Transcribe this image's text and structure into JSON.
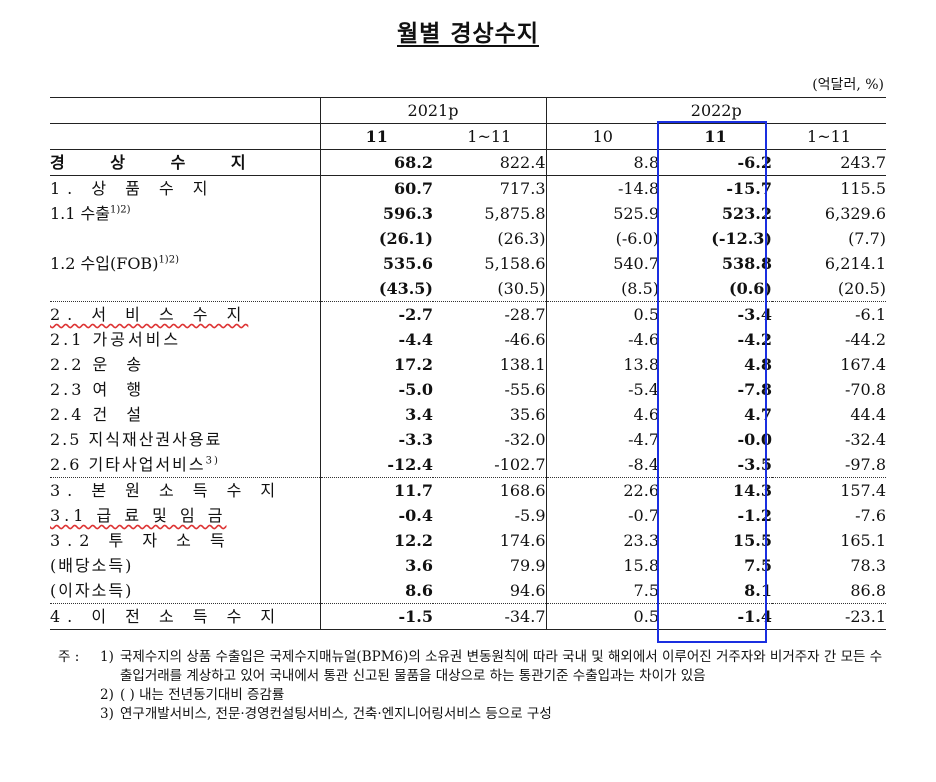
{
  "title": "월별 경상수지",
  "unit": "(억달러, %)",
  "header": {
    "years": [
      "2021p",
      "2022p"
    ],
    "cols": [
      "11",
      "1~11",
      "10",
      "11",
      "1~11"
    ]
  },
  "rows": [
    {
      "label": "경 상 수 지",
      "values": [
        "68.2",
        "822.4",
        "8.8",
        "-6.2",
        "243.7"
      ]
    },
    {
      "label": "1. 상 품 수 지",
      "values": [
        "60.7",
        "717.3",
        "-14.8",
        "-15.7",
        "115.5"
      ]
    },
    {
      "label": "1.1 수출",
      "sup": "1)2)",
      "values": [
        "596.3",
        "5,875.8",
        "525.9",
        "523.2",
        "6,329.6"
      ]
    },
    {
      "label": "",
      "values": [
        "(26.1)",
        "(26.3)",
        "(-6.0)",
        "(-12.3)",
        "(7.7)"
      ]
    },
    {
      "label": "1.2 수입(FOB)",
      "sup": "1)2)",
      "values": [
        "535.6",
        "5,158.6",
        "540.7",
        "538.8",
        "6,214.1"
      ]
    },
    {
      "label": "",
      "values": [
        "(43.5)",
        "(30.5)",
        "(8.5)",
        "(0.6)",
        "(20.5)"
      ]
    },
    {
      "label": "2. 서 비 스 수 지",
      "values": [
        "-2.7",
        "-28.7",
        "0.5",
        "-3.4",
        "-6.1"
      ]
    },
    {
      "label": "2.1 가공서비스",
      "values": [
        "-4.4",
        "-46.6",
        "-4.6",
        "-4.2",
        "-44.2"
      ]
    },
    {
      "label": "2.2 운  송",
      "values": [
        "17.2",
        "138.1",
        "13.8",
        "4.8",
        "167.4"
      ]
    },
    {
      "label": "2.3 여  행",
      "values": [
        "-5.0",
        "-55.6",
        "-5.4",
        "-7.8",
        "-70.8"
      ]
    },
    {
      "label": "2.4 건  설",
      "values": [
        "3.4",
        "35.6",
        "4.6",
        "4.7",
        "44.4"
      ]
    },
    {
      "label": "2.5 지식재산권사용료",
      "values": [
        "-3.3",
        "-32.0",
        "-4.7",
        "-0.0",
        "-32.4"
      ]
    },
    {
      "label": "2.6 기타사업서비스",
      "sup": "3)",
      "values": [
        "-12.4",
        "-102.7",
        "-8.4",
        "-3.5",
        "-97.8"
      ]
    },
    {
      "label": "3. 본 원 소 득 수 지",
      "values": [
        "11.7",
        "168.6",
        "22.6",
        "14.3",
        "157.4"
      ]
    },
    {
      "label": "3.1 급 료 및 임 금",
      "values": [
        "-0.4",
        "-5.9",
        "-0.7",
        "-1.2",
        "-7.6"
      ]
    },
    {
      "label": "3.2 투 자 소 득",
      "values": [
        "12.2",
        "174.6",
        "23.3",
        "15.5",
        "165.1"
      ]
    },
    {
      "label": "(배당소득)",
      "values": [
        "3.6",
        "79.9",
        "15.8",
        "7.5",
        "78.3"
      ]
    },
    {
      "label": "(이자소득)",
      "values": [
        "8.6",
        "94.6",
        "7.5",
        "8.1",
        "86.8"
      ]
    },
    {
      "label": "4. 이 전 소 득 수 지",
      "values": [
        "-1.5",
        "-34.7",
        "0.5",
        "-1.4",
        "-23.1"
      ]
    }
  ],
  "notes": {
    "prefix": "주 :",
    "items": [
      {
        "num": "1)",
        "text": "국제수지의 상품 수출입은 국제수지매뉴얼(BPM6)의 소유권 변동원칙에 따라 국내 및 해외에서 이루어진 거주자와 비거주자 간 모든 수출입거래를 계상하고 있어 국내에서 통관 신고된 물품을 대상으로 하는 통관기준 수출입과는 차이가 있음"
      },
      {
        "num": "2)",
        "text": "( ) 내는 전년동기대비 증감률"
      },
      {
        "num": "3)",
        "text": "연구개발서비스, 전문·경영컨설팅서비스, 건축·엔지니어링서비스 등으로 구성"
      }
    ]
  },
  "colors": {
    "highlight": "#1a2fe0",
    "wavy_underline": "#d33333"
  }
}
